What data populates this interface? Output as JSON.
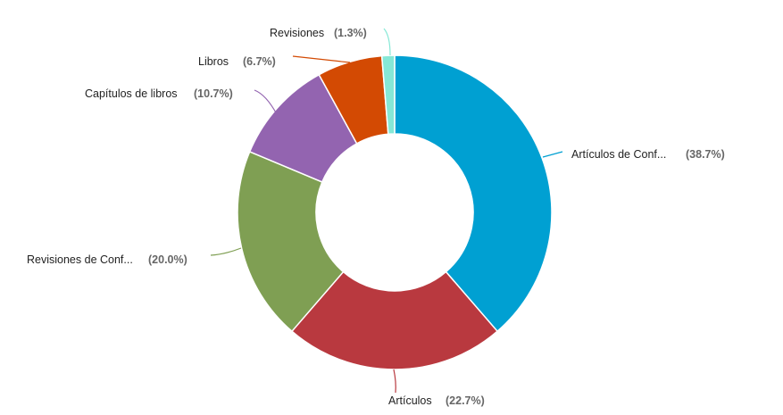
{
  "chart_data": {
    "type": "pie",
    "donut": true,
    "title": "",
    "legend": "none",
    "slices": [
      {
        "label": "Artículos de Conf...",
        "value": 38.7,
        "pct_label": "(38.7%)",
        "color": "#00a0d2"
      },
      {
        "label": "Artículos",
        "value": 22.7,
        "pct_label": "(22.7%)",
        "color": "#b9393f"
      },
      {
        "label": "Revisiones de Conf...",
        "value": 20.0,
        "pct_label": "(20.0%)",
        "color": "#7f9f53"
      },
      {
        "label": "Capítulos de libros",
        "value": 10.7,
        "pct_label": "(10.7%)",
        "color": "#9364b0"
      },
      {
        "label": "Libros",
        "value": 6.7,
        "pct_label": "(6.7%)",
        "color": "#d34a03"
      },
      {
        "label": "Revisiones",
        "value": 1.3,
        "pct_label": "(1.3%)",
        "color": "#86e8d6"
      }
    ]
  }
}
